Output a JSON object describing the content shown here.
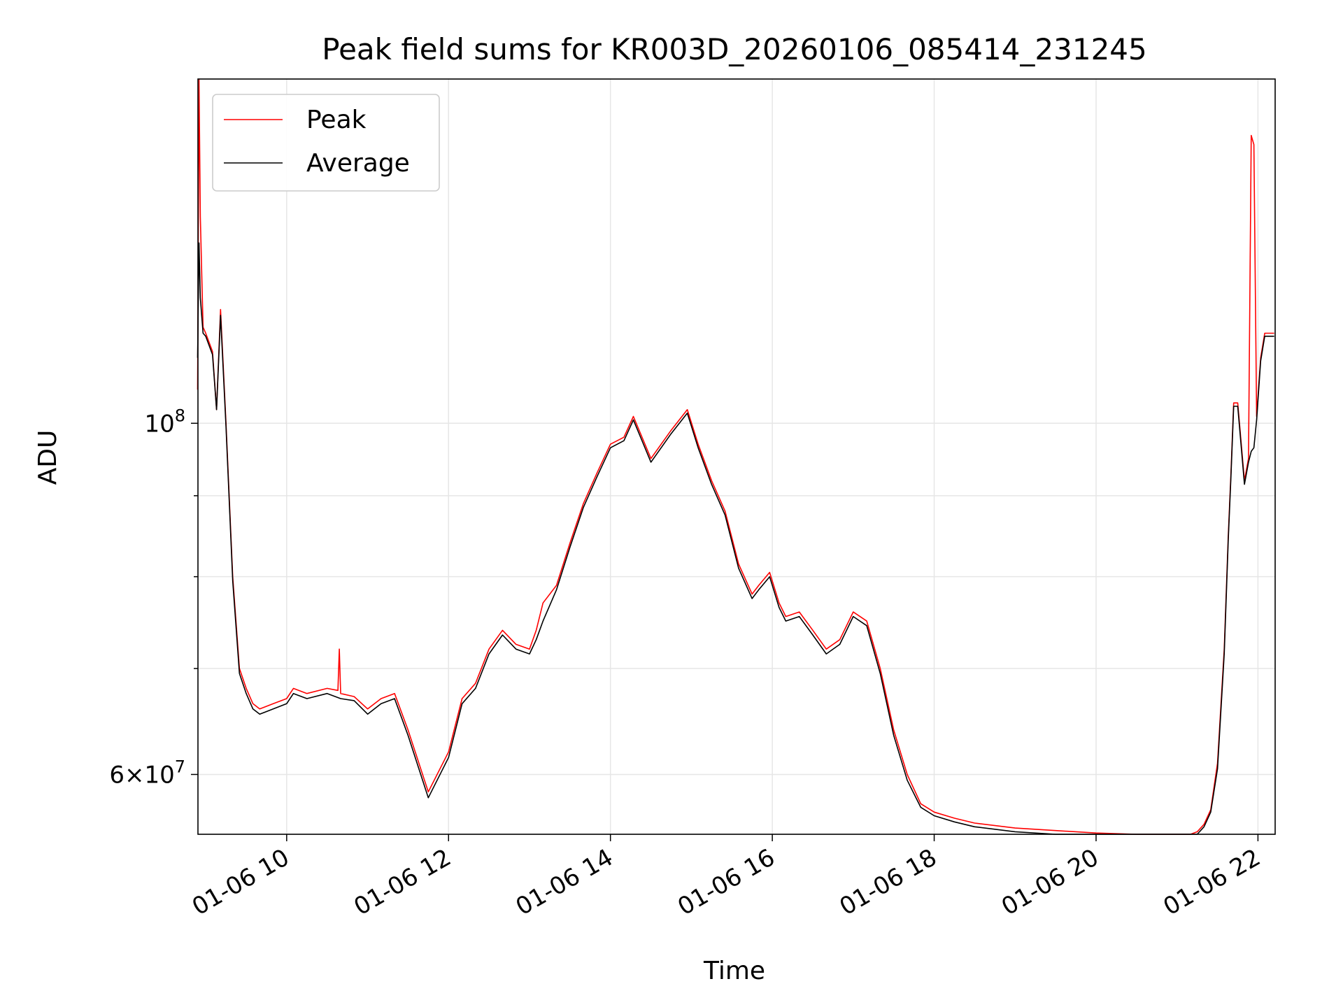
{
  "chart_data": {
    "type": "line",
    "title": "Peak field sums for KR003D_20260106_085414_231245",
    "xlabel": "Time",
    "ylabel": "ADU",
    "x_type": "datetime",
    "xlim": [
      "2026-01-06T08:54:14",
      "2026-01-06T22:12:45"
    ],
    "ylim": [
      55000000,
      165000000
    ],
    "yscale": "log",
    "grid": true,
    "legend_position": "upper-left",
    "x_ticks": [
      {
        "value": "2026-01-06T10:00",
        "label": "01-06 10"
      },
      {
        "value": "2026-01-06T12:00",
        "label": "01-06 12"
      },
      {
        "value": "2026-01-06T14:00",
        "label": "01-06 14"
      },
      {
        "value": "2026-01-06T16:00",
        "label": "01-06 16"
      },
      {
        "value": "2026-01-06T18:00",
        "label": "01-06 18"
      },
      {
        "value": "2026-01-06T20:00",
        "label": "01-06 20"
      },
      {
        "value": "2026-01-06T22:00",
        "label": "01-06 22"
      }
    ],
    "y_major_ticks": [
      {
        "value": 60000000,
        "mantissa": "6",
        "base": "10",
        "exp": "7"
      },
      {
        "value": 100000000,
        "mantissa": "",
        "base": "10",
        "exp": "8"
      }
    ],
    "y_minor_ticks": [
      70000000,
      80000000,
      90000000
    ],
    "series": [
      {
        "name": "Peak",
        "color": "#ff0000",
        "x": [
          "2026-01-06T08:54",
          "2026-01-06T08:55",
          "2026-01-06T08:56",
          "2026-01-06T08:58",
          "2026-01-06T09:00",
          "2026-01-06T09:05",
          "2026-01-06T09:08",
          "2026-01-06T09:11",
          "2026-01-06T09:15",
          "2026-01-06T09:20",
          "2026-01-06T09:25",
          "2026-01-06T09:30",
          "2026-01-06T09:35",
          "2026-01-06T09:40",
          "2026-01-06T09:50",
          "2026-01-06T10:00",
          "2026-01-06T10:05",
          "2026-01-06T10:15",
          "2026-01-06T10:30",
          "2026-01-06T10:38",
          "2026-01-06T10:39",
          "2026-01-06T10:40",
          "2026-01-06T10:50",
          "2026-01-06T11:00",
          "2026-01-06T11:10",
          "2026-01-06T11:20",
          "2026-01-06T11:30",
          "2026-01-06T11:45",
          "2026-01-06T12:00",
          "2026-01-06T12:10",
          "2026-01-06T12:20",
          "2026-01-06T12:30",
          "2026-01-06T12:40",
          "2026-01-06T12:50",
          "2026-01-06T13:00",
          "2026-01-06T13:05",
          "2026-01-06T13:10",
          "2026-01-06T13:20",
          "2026-01-06T13:30",
          "2026-01-06T13:40",
          "2026-01-06T13:50",
          "2026-01-06T14:00",
          "2026-01-06T14:10",
          "2026-01-06T14:17",
          "2026-01-06T14:30",
          "2026-01-06T14:45",
          "2026-01-06T14:57",
          "2026-01-06T15:05",
          "2026-01-06T15:15",
          "2026-01-06T15:25",
          "2026-01-06T15:35",
          "2026-01-06T15:45",
          "2026-01-06T15:50",
          "2026-01-06T15:58",
          "2026-01-06T16:05",
          "2026-01-06T16:10",
          "2026-01-06T16:20",
          "2026-01-06T16:30",
          "2026-01-06T16:40",
          "2026-01-06T16:50",
          "2026-01-06T17:00",
          "2026-01-06T17:10",
          "2026-01-06T17:20",
          "2026-01-06T17:30",
          "2026-01-06T17:40",
          "2026-01-06T17:50",
          "2026-01-06T18:00",
          "2026-01-06T18:15",
          "2026-01-06T18:30",
          "2026-01-06T19:00",
          "2026-01-06T19:30",
          "2026-01-06T20:00",
          "2026-01-06T20:30",
          "2026-01-06T20:45",
          "2026-01-06T21:00",
          "2026-01-06T21:10",
          "2026-01-06T21:15",
          "2026-01-06T21:20",
          "2026-01-06T21:25",
          "2026-01-06T21:30",
          "2026-01-06T21:35",
          "2026-01-06T21:38",
          "2026-01-06T21:40",
          "2026-01-06T21:42",
          "2026-01-06T21:45",
          "2026-01-06T21:50",
          "2026-01-06T21:53",
          "2026-01-06T21:55",
          "2026-01-06T21:57",
          "2026-01-06T21:59",
          "2026-01-06T22:02",
          "2026-01-06T22:05",
          "2026-01-06T22:12"
        ],
        "values": [
          105000000,
          165000000,
          135000000,
          115000000,
          114000000,
          111000000,
          102000000,
          118000000,
          100000000,
          80000000,
          70000000,
          68000000,
          66500000,
          66000000,
          66500000,
          67000000,
          68000000,
          67500000,
          68000000,
          67800000,
          72000000,
          67500000,
          67200000,
          66000000,
          67000000,
          67500000,
          64000000,
          58500000,
          62000000,
          67000000,
          68500000,
          72000000,
          74000000,
          72500000,
          72000000,
          74000000,
          77000000,
          79000000,
          84000000,
          89000000,
          93000000,
          97000000,
          98000000,
          101000000,
          95000000,
          99000000,
          102000000,
          97000000,
          92000000,
          88000000,
          81500000,
          78000000,
          79000000,
          80500000,
          77000000,
          75500000,
          76000000,
          74000000,
          72000000,
          73000000,
          76000000,
          75000000,
          70000000,
          64000000,
          60000000,
          57500000,
          56800000,
          56300000,
          55900000,
          55500000,
          55300000,
          55100000,
          55000000,
          54800000,
          54700000,
          54900000,
          55200000,
          55800000,
          57000000,
          61000000,
          72000000,
          85000000,
          93000000,
          103000000,
          103000000,
          92000000,
          95000000,
          152000000,
          150000000,
          101000000,
          110000000,
          114000000,
          114000000
        ]
      },
      {
        "name": "Average",
        "color": "#000000",
        "x": [
          "2026-01-06T08:54",
          "2026-01-06T08:55",
          "2026-01-06T08:56",
          "2026-01-06T08:58",
          "2026-01-06T09:00",
          "2026-01-06T09:05",
          "2026-01-06T09:08",
          "2026-01-06T09:11",
          "2026-01-06T09:15",
          "2026-01-06T09:20",
          "2026-01-06T09:25",
          "2026-01-06T09:30",
          "2026-01-06T09:35",
          "2026-01-06T09:40",
          "2026-01-06T09:50",
          "2026-01-06T10:00",
          "2026-01-06T10:05",
          "2026-01-06T10:15",
          "2026-01-06T10:30",
          "2026-01-06T10:40",
          "2026-01-06T10:50",
          "2026-01-06T11:00",
          "2026-01-06T11:10",
          "2026-01-06T11:20",
          "2026-01-06T11:30",
          "2026-01-06T11:45",
          "2026-01-06T12:00",
          "2026-01-06T12:10",
          "2026-01-06T12:20",
          "2026-01-06T12:30",
          "2026-01-06T12:40",
          "2026-01-06T12:50",
          "2026-01-06T13:00",
          "2026-01-06T13:05",
          "2026-01-06T13:10",
          "2026-01-06T13:20",
          "2026-01-06T13:30",
          "2026-01-06T13:40",
          "2026-01-06T13:50",
          "2026-01-06T14:00",
          "2026-01-06T14:10",
          "2026-01-06T14:17",
          "2026-01-06T14:30",
          "2026-01-06T14:45",
          "2026-01-06T14:57",
          "2026-01-06T15:05",
          "2026-01-06T15:15",
          "2026-01-06T15:25",
          "2026-01-06T15:35",
          "2026-01-06T15:45",
          "2026-01-06T15:50",
          "2026-01-06T15:58",
          "2026-01-06T16:05",
          "2026-01-06T16:10",
          "2026-01-06T16:20",
          "2026-01-06T16:30",
          "2026-01-06T16:40",
          "2026-01-06T16:50",
          "2026-01-06T17:00",
          "2026-01-06T17:10",
          "2026-01-06T17:20",
          "2026-01-06T17:30",
          "2026-01-06T17:40",
          "2026-01-06T17:50",
          "2026-01-06T18:00",
          "2026-01-06T18:15",
          "2026-01-06T18:30",
          "2026-01-06T19:00",
          "2026-01-06T19:30",
          "2026-01-06T20:00",
          "2026-01-06T20:30",
          "2026-01-06T20:45",
          "2026-01-06T21:00",
          "2026-01-06T21:10",
          "2026-01-06T21:15",
          "2026-01-06T21:20",
          "2026-01-06T21:25",
          "2026-01-06T21:30",
          "2026-01-06T21:35",
          "2026-01-06T21:38",
          "2026-01-06T21:40",
          "2026-01-06T21:42",
          "2026-01-06T21:45",
          "2026-01-06T21:50",
          "2026-01-06T21:53",
          "2026-01-06T21:55",
          "2026-01-06T21:57",
          "2026-01-06T21:59",
          "2026-01-06T22:02",
          "2026-01-06T22:05",
          "2026-01-06T22:12"
        ],
        "values": [
          110000000,
          130000000,
          120000000,
          114000000,
          113500000,
          110500000,
          102000000,
          117000000,
          99500000,
          79500000,
          69500000,
          67500000,
          66000000,
          65500000,
          66000000,
          66500000,
          67500000,
          67000000,
          67500000,
          67000000,
          66800000,
          65500000,
          66500000,
          67000000,
          63500000,
          58000000,
          61500000,
          66500000,
          68000000,
          71500000,
          73500000,
          72000000,
          71500000,
          73000000,
          75000000,
          78500000,
          83500000,
          88500000,
          92500000,
          96500000,
          97500000,
          100500000,
          94500000,
          98500000,
          101500000,
          96500000,
          91500000,
          87500000,
          81000000,
          77500000,
          78500000,
          80000000,
          76500000,
          75000000,
          75500000,
          73500000,
          71500000,
          72500000,
          75500000,
          74500000,
          69500000,
          63500000,
          59500000,
          57200000,
          56500000,
          56000000,
          55600000,
          55200000,
          55000000,
          54900000,
          54800000,
          54600000,
          54500000,
          54700000,
          55000000,
          55600000,
          56800000,
          60500000,
          71500000,
          84500000,
          92500000,
          102500000,
          102500000,
          91500000,
          94500000,
          96000000,
          96500000,
          100500000,
          109500000,
          113500000,
          113500000
        ]
      }
    ]
  }
}
